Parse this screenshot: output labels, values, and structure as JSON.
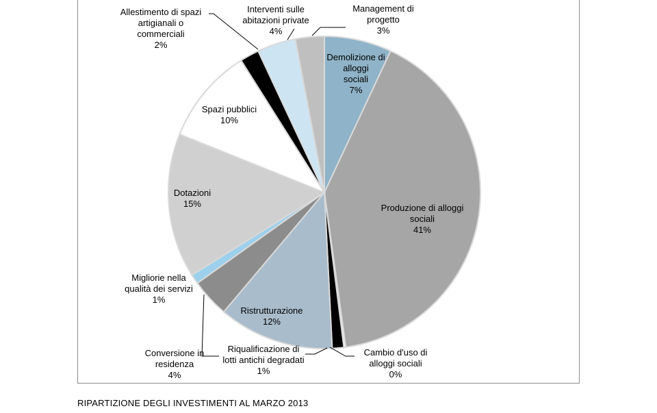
{
  "chart_data": {
    "type": "pie",
    "title": "RIPARTIZIONE DEGLI INVESTIMENTI AL MARZO 2013",
    "slices": [
      {
        "name": "Demolizione di\nalloggi\nsociali",
        "pct": "7%",
        "value": 7,
        "color": "#8fb3c8"
      },
      {
        "name": "Produzione di alloggi\nsociali",
        "pct": "41%",
        "value": 41,
        "color": "#a6a6a6"
      },
      {
        "name": "Cambio d'uso di\nalloggi sociali",
        "pct": "0%",
        "value": 0.2,
        "color": "#ffffff"
      },
      {
        "name": "Riqualificazione di\nlotti antichi degradati",
        "pct": "1%",
        "value": 1.2,
        "color": "#000000"
      },
      {
        "name": "Ristrutturazione",
        "pct": "12%",
        "value": 12,
        "color": "#a9bccb"
      },
      {
        "name": "Conversione in\nresidenza",
        "pct": "4%",
        "value": 4,
        "color": "#8c8c8c"
      },
      {
        "name": "Migliorie nella\nqualità dei servizi",
        "pct": "1%",
        "value": 1,
        "color": "#9dd0ec"
      },
      {
        "name": "Dotazioni",
        "pct": "15%",
        "value": 15,
        "color": "#d0d0d0"
      },
      {
        "name": "Spazi pubblici",
        "pct": "10%",
        "value": 10,
        "color": "#ffffff"
      },
      {
        "name": "Allestimento di spazi\nartigianali o\ncommerciali",
        "pct": "2%",
        "value": 2,
        "color": "#000000"
      },
      {
        "name": "Interventi sulle\nabitazioni private",
        "pct": "4%",
        "value": 4,
        "color": "#cde5f3"
      },
      {
        "name": "Management di\nprogetto",
        "pct": "3%",
        "value": 3,
        "color": "#bfbfbf"
      }
    ]
  }
}
